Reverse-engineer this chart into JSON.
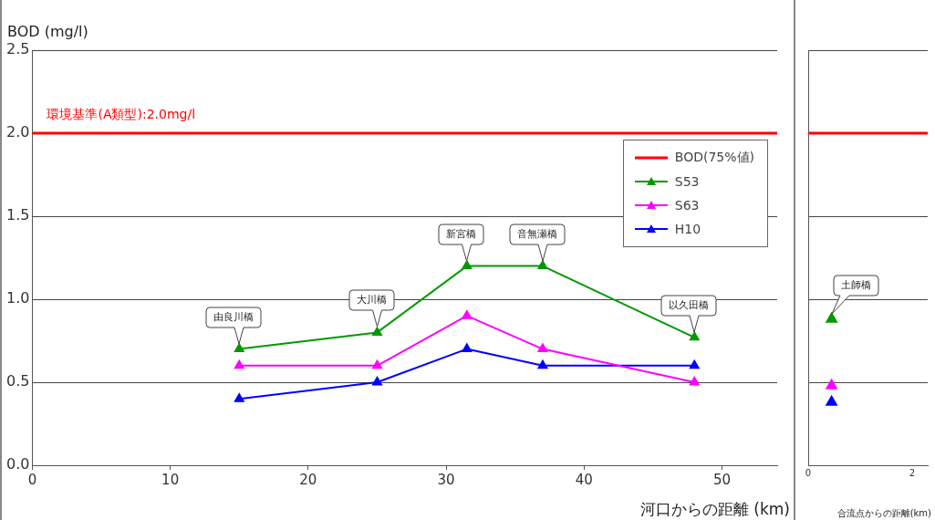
{
  "chart_data": [
    {
      "type": "line",
      "ylabel": "BOD (mg/l)",
      "xlabel": "河口からの距離 (km)",
      "xlim": [
        0,
        54
      ],
      "xticks": [
        0,
        10,
        20,
        30,
        40,
        50
      ],
      "ylim": [
        0,
        2.5
      ],
      "yticks": [
        {
          "value": 0,
          "label": "0.0"
        },
        {
          "value": 0.5,
          "label": "0.5"
        },
        {
          "value": 1,
          "label": "1.0"
        },
        {
          "value": 1.5,
          "label": "1.5"
        },
        {
          "value": 2,
          "label": "2.0"
        },
        {
          "value": 2.5,
          "label": "2.5"
        }
      ],
      "grid": "y",
      "legend": "top right",
      "marker": "triangle",
      "line_style": "solid",
      "series": [
        {
          "name": "BOD(75%値)",
          "color": "#ff0000",
          "marker": "none",
          "x": [
            0,
            54
          ],
          "values": [
            2.0,
            2.0
          ]
        },
        {
          "name": "S53",
          "color": "#009900",
          "x": [
            15,
            25,
            31.5,
            37,
            48
          ],
          "values": [
            0.7,
            0.8,
            1.2,
            1.2,
            0.77
          ]
        },
        {
          "name": "S63",
          "color": "#ff00ff",
          "x": [
            15,
            25,
            31.5,
            37,
            48
          ],
          "values": [
            0.6,
            0.6,
            0.9,
            0.7,
            0.5
          ]
        },
        {
          "name": "H10",
          "color": "#0000ff",
          "x": [
            15,
            25,
            31.5,
            37,
            48
          ],
          "values": [
            0.4,
            0.5,
            0.7,
            0.6,
            0.6
          ]
        }
      ],
      "annotations": [
        "環境基準(A類型):2.0mg/l",
        {
          "text": "由良川橋",
          "x": 15,
          "y": 0.7
        },
        {
          "text": "大川橋",
          "x": 25,
          "y": 0.8
        },
        {
          "text": "新宮橋",
          "x": 31.5,
          "y": 1.2
        },
        {
          "text": "音無瀬橋",
          "x": 37,
          "y": 1.2
        },
        {
          "text": "以久田橋",
          "x": 48,
          "y": 0.77
        }
      ]
    },
    {
      "type": "scatter",
      "xlabel": "合流点からの距離(km)",
      "xlim": [
        0,
        2.3
      ],
      "xticks": [
        0,
        2
      ],
      "ylim": [
        0,
        2.5
      ],
      "yticks": [
        0,
        0.5,
        1,
        1.5,
        2,
        2.5
      ],
      "tick_labels": "x",
      "grid": "y",
      "marker": "triangle",
      "series": [
        {
          "color": "#009900",
          "x": [
            0.45
          ],
          "values": [
            0.88
          ]
        },
        {
          "color": "#ff00ff",
          "x": [
            0.45
          ],
          "values": [
            0.48
          ]
        },
        {
          "color": "#0000ff",
          "x": [
            0.45
          ],
          "values": [
            0.38
          ]
        }
      ],
      "ref_lines": [
        {
          "axis": "y",
          "value": 2.0,
          "color": "#ff0000"
        }
      ],
      "annotations": [
        {
          "text": "土師橋",
          "x": 0.45,
          "y": 0.88
        }
      ]
    }
  ]
}
